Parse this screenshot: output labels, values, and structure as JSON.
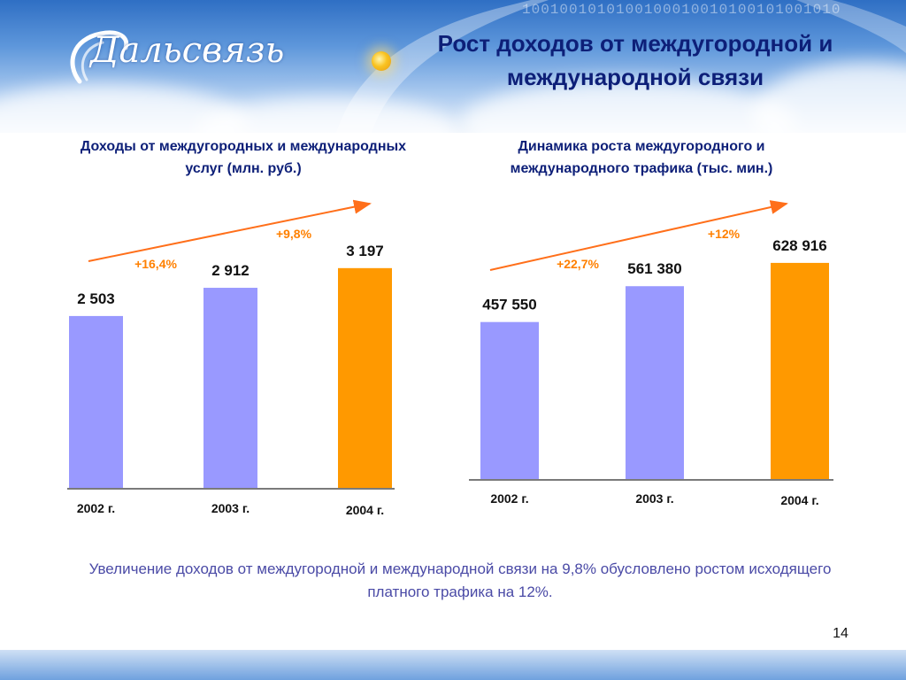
{
  "header": {
    "title": "Рост доходов от междугородной и международной связи",
    "logo_text": "Дальсвязь",
    "binary_text": "1001001010100100010010100101001010"
  },
  "colors": {
    "bar_blue": "#9999ff",
    "bar_orange": "#ff9900",
    "arrow": "#ff6f1a",
    "pct_text": "#ff8000",
    "title_text": "#0d1f78",
    "note_text": "#4a4aa6"
  },
  "chart_data": [
    {
      "type": "bar",
      "title": "Доходы от междугородных и международных услуг (млн. руб.)",
      "categories": [
        "2002 г.",
        "2003 г.",
        "2004 г."
      ],
      "values": [
        2503,
        2912,
        3197
      ],
      "value_labels": [
        "2 503",
        "2 912",
        "3 197"
      ],
      "bar_colors": [
        "#9999ff",
        "#9999ff",
        "#ff9900"
      ],
      "growth_labels": [
        "+16,4%",
        "+9,8%"
      ],
      "ylim": [
        0,
        3400
      ]
    },
    {
      "type": "bar",
      "title": "Динамика роста междугородного и международного трафика (тыс. мин.)",
      "categories": [
        "2002 г.",
        "2003 г.",
        "2004 г."
      ],
      "values": [
        457550,
        561380,
        628916
      ],
      "value_labels": [
        "457 550",
        "561 380",
        "628 916"
      ],
      "bar_colors": [
        "#9999ff",
        "#9999ff",
        "#ff9900"
      ],
      "growth_labels": [
        "+22,7%",
        "+12%"
      ],
      "ylim": [
        0,
        680000
      ]
    }
  ],
  "note": "Увеличение доходов от междугородной и международной связи на 9,8% обусловлено ростом исходящего платного трафика на 12%.",
  "page_number": "14"
}
